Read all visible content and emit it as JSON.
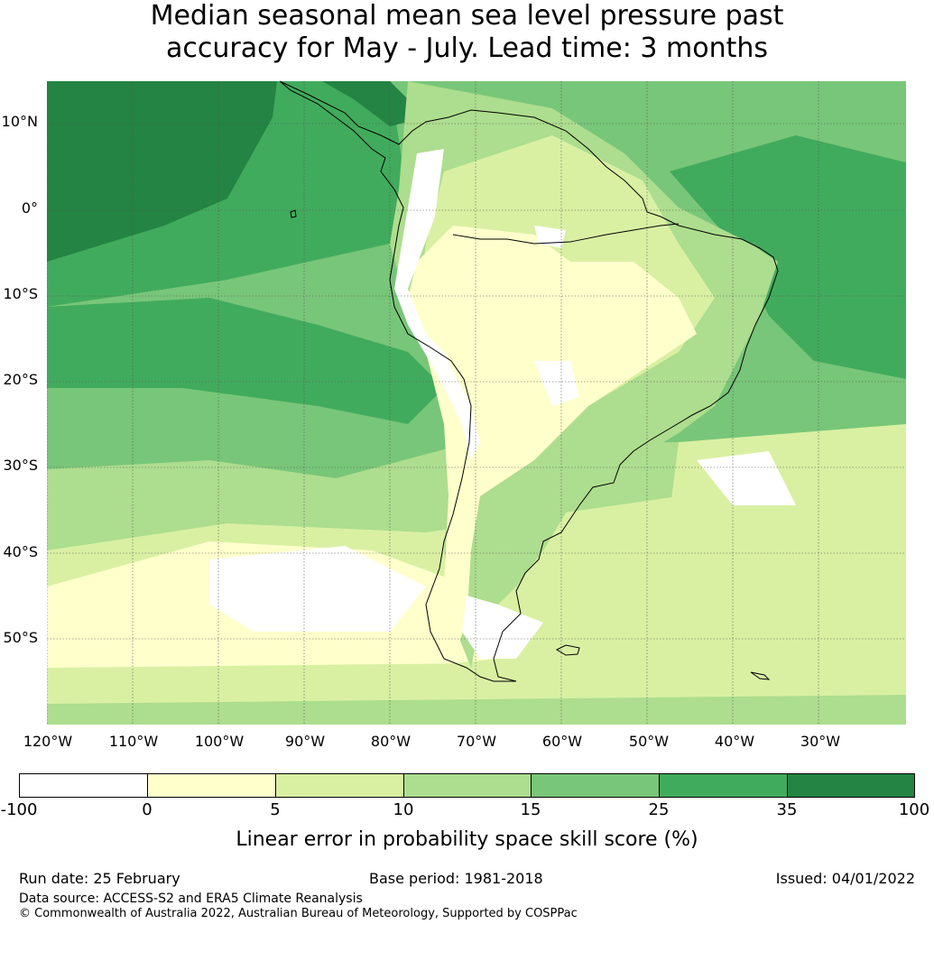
{
  "title_lines": [
    "Median seasonal mean sea level pressure past",
    "accuracy for May - July. Lead time: 3 months"
  ],
  "map": {
    "lat_labels": [
      "10°N",
      "0°",
      "10°S",
      "20°S",
      "30°S",
      "40°S",
      "50°S"
    ],
    "lon_labels": [
      "120°W",
      "110°W",
      "100°W",
      "90°W",
      "80°W",
      "70°W",
      "60°W",
      "50°W",
      "40°W",
      "30°W"
    ]
  },
  "colorbar": {
    "ticks": [
      "-100",
      "0",
      "5",
      "10",
      "15",
      "25",
      "35",
      "100"
    ],
    "colors": [
      "#ffffff",
      "#ffffcc",
      "#d9f0a3",
      "#addd8e",
      "#78c679",
      "#41ab5d",
      "#238443"
    ],
    "label": "Linear error in probability space skill score (%)"
  },
  "footer": {
    "run_date": "Run date: 25 February",
    "base_period": "Base period: 1981-2018",
    "issued": "Issued: 04/01/2022",
    "data_source": "Data source: ACCESS-S2 and ERA5 Climate Reanalysis",
    "copyright": "© Commonwealth of Australia 2022, Australian Bureau of Meteorology, Supported by COSPPac"
  }
}
